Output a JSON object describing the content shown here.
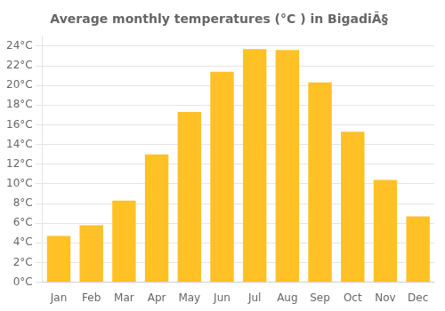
{
  "chart_data": {
    "type": "bar",
    "title": "Average monthly temperatures (°C ) in BigadiÃ§",
    "categories": [
      "Jan",
      "Feb",
      "Mar",
      "Apr",
      "May",
      "Jun",
      "Jul",
      "Aug",
      "Sep",
      "Oct",
      "Nov",
      "Dec"
    ],
    "values": [
      4.7,
      5.8,
      8.3,
      13.0,
      17.3,
      21.4,
      23.7,
      23.6,
      20.3,
      15.3,
      10.4,
      6.7
    ],
    "color": "#FFC125",
    "ylim": [
      0,
      25
    ],
    "yticks": [
      {
        "value": 0,
        "label": "0°C"
      },
      {
        "value": 2,
        "label": "2°C"
      },
      {
        "value": 4,
        "label": "4°C"
      },
      {
        "value": 6,
        "label": "6°C"
      },
      {
        "value": 8,
        "label": "8°C"
      },
      {
        "value": 10,
        "label": "10°C"
      },
      {
        "value": 12,
        "label": "12°C"
      },
      {
        "value": 14,
        "label": "14°C"
      },
      {
        "value": 16,
        "label": "16°C"
      },
      {
        "value": 18,
        "label": "18°C"
      },
      {
        "value": 20,
        "label": "20°C"
      },
      {
        "value": 22,
        "label": "22°C"
      },
      {
        "value": 24,
        "label": "24°C"
      }
    ],
    "grid": true
  }
}
